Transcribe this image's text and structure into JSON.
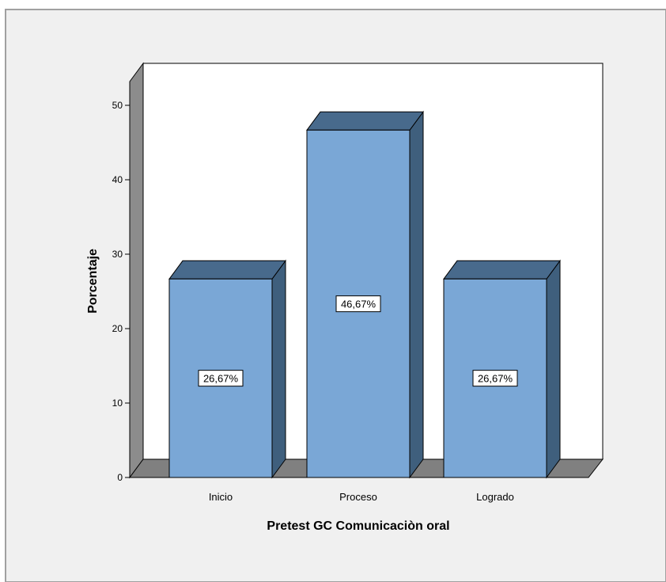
{
  "chart_data": {
    "type": "bar",
    "title": "",
    "xlabel": "Pretest GC Comunicaciòn oral",
    "ylabel": "Porcentaje",
    "categories": [
      "Inicio",
      "Proceso",
      "Logrado"
    ],
    "values": [
      26.67,
      46.67,
      26.67
    ],
    "data_labels": [
      "26,67%",
      "46,67%",
      "26,67%"
    ],
    "yticks": [
      "0",
      "10",
      "20",
      "30",
      "40",
      "50"
    ],
    "ylim": [
      0,
      50
    ],
    "grid": false,
    "legend": "none",
    "style": "3d",
    "colors": {
      "bar_front": "#7aa7d6",
      "bar_top": "#486a8c",
      "bar_side": "#3f5f7d",
      "floor": "#808080",
      "wall_side": "#8c8c8c",
      "panel_bg": "#f0f0f0",
      "plot_bg": "#ffffff",
      "frame_border": "#a0a0a0"
    }
  }
}
